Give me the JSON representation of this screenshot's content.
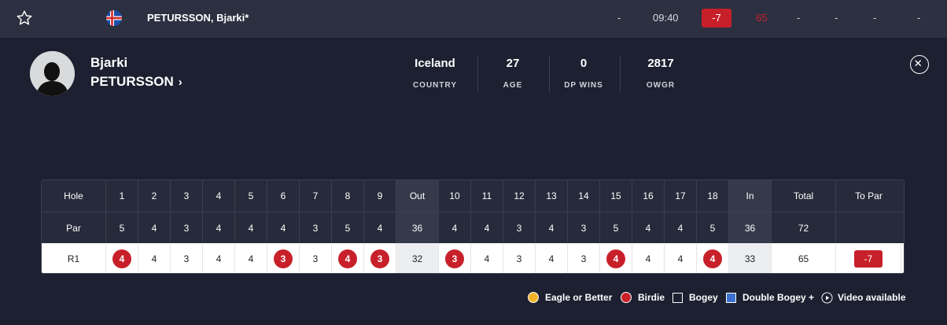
{
  "top_row": {
    "player_name": "PETURSSON, Bjarki*",
    "position": "-",
    "tee_time": "09:40",
    "to_par": "-7",
    "score": "65",
    "rounds": [
      "-",
      "-",
      "-",
      "-"
    ]
  },
  "player": {
    "first_name": "Bjarki",
    "last_name": "PETURSSON",
    "chevron": "›"
  },
  "stats": [
    {
      "value": "Iceland",
      "label": "COUNTRY"
    },
    {
      "value": "27",
      "label": "AGE"
    },
    {
      "value": "0",
      "label": "DP WINS"
    },
    {
      "value": "2817",
      "label": "OWGR"
    }
  ],
  "scorecard": {
    "header": {
      "label": "Hole",
      "front": [
        "1",
        "2",
        "3",
        "4",
        "5",
        "6",
        "7",
        "8",
        "9"
      ],
      "out": "Out",
      "back": [
        "10",
        "11",
        "12",
        "13",
        "14",
        "15",
        "16",
        "17",
        "18"
      ],
      "in": "In",
      "total": "Total",
      "to_par": "To Par"
    },
    "par": {
      "label": "Par",
      "front": [
        "5",
        "4",
        "3",
        "4",
        "4",
        "4",
        "3",
        "5",
        "4"
      ],
      "out": "36",
      "back": [
        "4",
        "4",
        "3",
        "4",
        "3",
        "5",
        "4",
        "4",
        "5"
      ],
      "in": "36",
      "total": "72",
      "to_par": ""
    },
    "r1": {
      "label": "R1",
      "front": [
        "4",
        "4",
        "3",
        "4",
        "4",
        "3",
        "3",
        "4",
        "3"
      ],
      "out": "32",
      "back": [
        "3",
        "4",
        "3",
        "4",
        "3",
        "4",
        "4",
        "4",
        "4"
      ],
      "in": "33",
      "total": "65",
      "to_par": "-7"
    },
    "r1_birdies_front": [
      true,
      false,
      false,
      false,
      false,
      true,
      false,
      true,
      true
    ],
    "r1_birdies_back": [
      true,
      false,
      false,
      false,
      false,
      true,
      false,
      false,
      true
    ]
  },
  "legend": {
    "eagle": "Eagle or Better",
    "birdie": "Birdie",
    "bogey": "Bogey",
    "double_bogey": "Double Bogey +",
    "video": "Video available"
  },
  "colors": {
    "eagle": "#f0b429",
    "birdie": "#c8202a",
    "bogey": "#1c2030",
    "double_bogey": "#3b6fd1"
  },
  "icons": {
    "favorite": "star-icon",
    "flag": "iceland-flag-icon",
    "close": "close-icon",
    "video": "play-icon"
  }
}
